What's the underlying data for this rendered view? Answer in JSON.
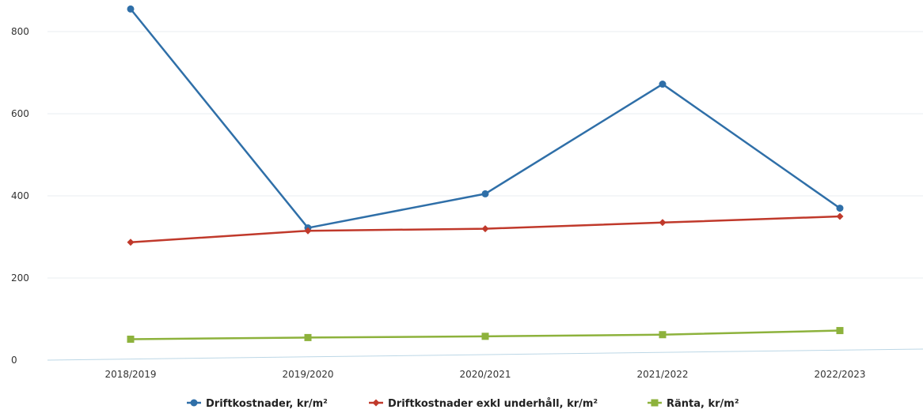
{
  "chart_data": {
    "type": "line",
    "title": "",
    "xlabel": "",
    "ylabel": "",
    "categories": [
      "2018/2019",
      "2019/2020",
      "2020/2021",
      "2021/2022",
      "2022/2023"
    ],
    "ylim": [
      0,
      850
    ],
    "yticks": [
      0,
      200,
      400,
      600,
      800
    ],
    "grid": true,
    "legend_position": "bottom-center",
    "series": [
      {
        "name": "Driftkostnader, kr/m²",
        "values": [
          855,
          322,
          405,
          672,
          370
        ],
        "color": "#2f6fa8",
        "marker": "circle"
      },
      {
        "name": "Driftkostnader exkl underhåll, kr/m²",
        "values": [
          287,
          315,
          320,
          335,
          350
        ],
        "color": "#c0392b",
        "marker": "diamond"
      },
      {
        "name": "Ränta, kr/m²",
        "values": [
          51,
          55,
          58,
          62,
          72
        ],
        "color": "#8db23c",
        "marker": "square"
      }
    ]
  }
}
